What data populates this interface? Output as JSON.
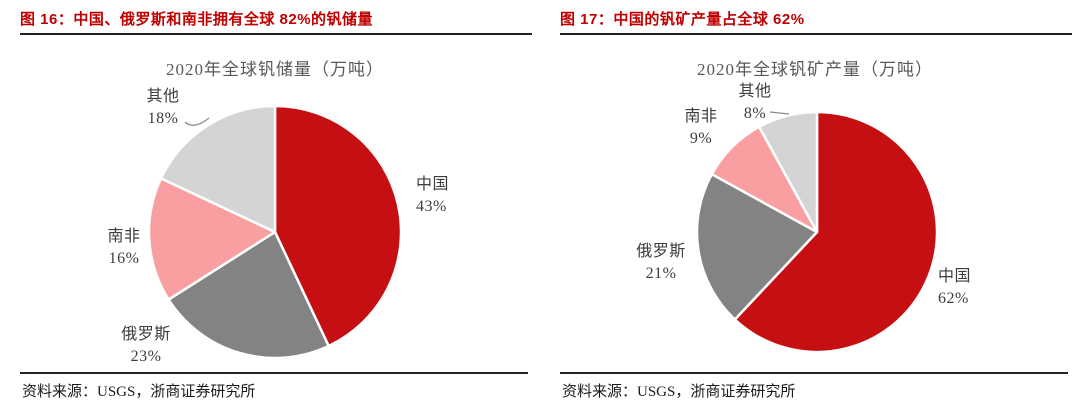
{
  "figures": [
    {
      "caption": "图 16：中国、俄罗斯和南非拥有全球 82%的钒储量",
      "source": "资料来源：USGS，浙商证券研究所"
    },
    {
      "caption": "图 17：中国的钒矿产量占全球 62%",
      "source": "资料来源：USGS，浙商证券研究所"
    }
  ],
  "colors": {
    "caption_red": "#c00000",
    "china_red": "#c50f12",
    "russia_gray": "#838383",
    "south_africa_pink": "#f99fa1",
    "others_light_gray": "#d4d4d4",
    "rule_dark": "#1f1f1f"
  },
  "chart_data": [
    {
      "type": "pie",
      "title": "2020年全球钒储量（万吨）",
      "unit": "万吨",
      "start_angle_deg": 0,
      "direction": "clockwise",
      "legend_position": "outside-labels",
      "slices": [
        {
          "label": "中国",
          "value": 43,
          "pct_label": "43%",
          "color": "#c50f12"
        },
        {
          "label": "俄罗斯",
          "value": 23,
          "pct_label": "23%",
          "color": "#838383"
        },
        {
          "label": "南非",
          "value": 16,
          "pct_label": "16%",
          "color": "#f99fa1"
        },
        {
          "label": "其他",
          "value": 18,
          "pct_label": "18%",
          "color": "#d4d4d4"
        }
      ]
    },
    {
      "type": "pie",
      "title": "2020年全球钒矿产量（万吨）",
      "unit": "万吨",
      "start_angle_deg": 0,
      "direction": "clockwise",
      "legend_position": "outside-labels",
      "slices": [
        {
          "label": "中国",
          "value": 62,
          "pct_label": "62%",
          "color": "#c50f12"
        },
        {
          "label": "俄罗斯",
          "value": 21,
          "pct_label": "21%",
          "color": "#838383"
        },
        {
          "label": "南非",
          "value": 9,
          "pct_label": "9%",
          "color": "#f99fa1"
        },
        {
          "label": "其他",
          "value": 8,
          "pct_label": "8%",
          "color": "#d4d4d4"
        }
      ]
    }
  ]
}
